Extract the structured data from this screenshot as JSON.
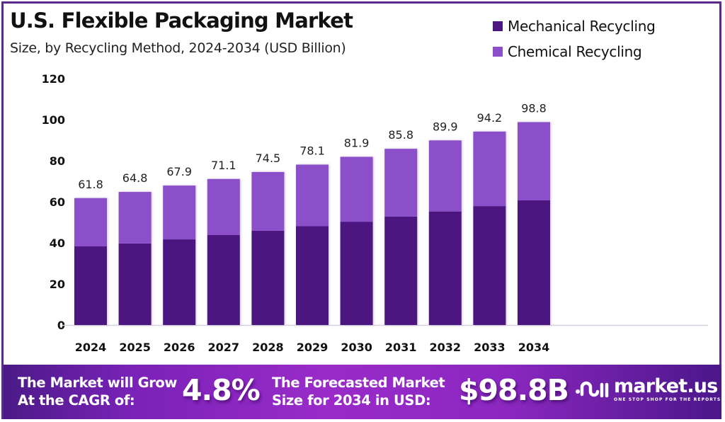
{
  "header": {
    "title": "U.S. Flexible Packaging Market",
    "subtitle": "Size, by Recycling Method, 2024-2034 (USD Billion)"
  },
  "colors": {
    "mechanical": "#4c1780",
    "chemical": "#8b4fc9",
    "frame": "#5a2a8c",
    "axis_line": "#d8d0e0"
  },
  "chart_data": {
    "type": "bar",
    "stacked": true,
    "title": "U.S. Flexible Packaging Market",
    "subtitle": "Size, by Recycling Method, 2024-2034 (USD Billion)",
    "xlabel": "",
    "ylabel": "",
    "ylim": [
      0,
      120
    ],
    "yticks": [
      0,
      20,
      40,
      60,
      80,
      100,
      120
    ],
    "grid": false,
    "legend_position": "top-right",
    "categories": [
      "2024",
      "2025",
      "2026",
      "2027",
      "2028",
      "2029",
      "2030",
      "2031",
      "2032",
      "2033",
      "2034"
    ],
    "series": [
      {
        "name": "Mechanical Recycling",
        "color": "#4c1780",
        "values": [
          38.3,
          39.7,
          41.7,
          43.8,
          45.9,
          48.1,
          50.3,
          52.8,
          55.3,
          57.9,
          60.7
        ]
      },
      {
        "name": "Chemical Recycling",
        "color": "#8b4fc9",
        "values": [
          23.5,
          25.1,
          26.2,
          27.3,
          28.6,
          30.0,
          31.6,
          33.0,
          34.6,
          36.3,
          38.1
        ]
      }
    ],
    "totals": [
      61.8,
      64.8,
      67.9,
      71.1,
      74.5,
      78.1,
      81.9,
      85.8,
      89.9,
      94.2,
      98.8
    ],
    "total_labels": [
      "61.8",
      "64.8",
      "67.9",
      "71.1",
      "74.5",
      "78.1",
      "81.9",
      "85.8",
      "89.9",
      "94.2",
      "98.8"
    ]
  },
  "banner": {
    "cagr_text_line1": "The Market will Grow",
    "cagr_text_line2": "At the CAGR of:",
    "cagr_value": "4.8%",
    "forecast_text_line1": "The Forecasted Market",
    "forecast_text_line2": "Size for 2034 in USD:",
    "forecast_value": "$98.8B",
    "logo_icon": "market-us-logo-icon",
    "logo_name": "market.us",
    "logo_tagline": "ONE STOP SHOP FOR THE REPORTS"
  }
}
